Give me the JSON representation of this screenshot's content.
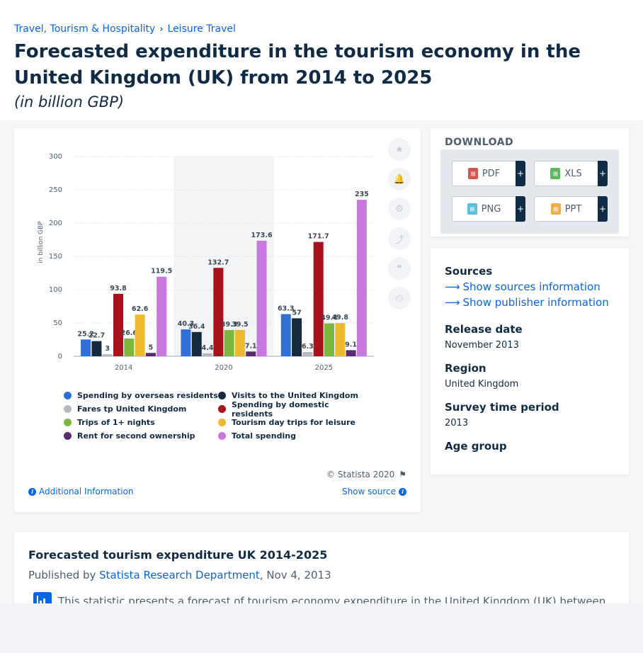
{
  "breadcrumb": {
    "items": [
      "Travel, Tourism & Hospitality",
      "Leisure Travel"
    ],
    "separator": "›"
  },
  "page": {
    "title": "Forecasted expenditure in the tourism economy in the United Kingdom (UK) from 2014 to 2025",
    "subtitle": "(in billion GBP)"
  },
  "chart_data": {
    "type": "bar",
    "categories": [
      "2014",
      "2020",
      "2025"
    ],
    "ylabel": "in billion GBP",
    "ylim": [
      0,
      300
    ],
    "yticks": [
      0,
      50,
      100,
      150,
      200,
      250,
      300
    ],
    "grid": true,
    "highlighted_category": "2020",
    "legend_position": "bottom",
    "series": [
      {
        "name": "Spending by overseas residents",
        "color": "#2f6fd6",
        "values": [
          25.2,
          40.3,
          63.3
        ],
        "labels": [
          "25.2",
          "40.3",
          "63.3"
        ]
      },
      {
        "name": "Visits to the United Kingdom",
        "color": "#15293f",
        "values": [
          22.7,
          36.4,
          57
        ],
        "labels": [
          "22.7",
          "36.4",
          "57"
        ]
      },
      {
        "name": "Fares tp United Kingdom",
        "color": "#b4bac0",
        "values": [
          3,
          4.4,
          6.3
        ],
        "labels": [
          "3",
          "4.4",
          "6.3"
        ]
      },
      {
        "name": "Spending by domestic residents",
        "color": "#a8121c",
        "values": [
          93.8,
          132.7,
          171.7
        ],
        "labels": [
          "93.8",
          "132.7",
          "171.7"
        ]
      },
      {
        "name": "Trips of 1+ nights",
        "color": "#7cb83d",
        "values": [
          26.6,
          39.3,
          49.4
        ],
        "labels": [
          "26.6",
          "39.3",
          "49.4"
        ]
      },
      {
        "name": "Tourism day trips for leisure",
        "color": "#efb92f",
        "values": [
          62.6,
          39.5,
          49.8
        ],
        "labels": [
          "62.6",
          "39.5",
          "49.8"
        ]
      },
      {
        "name": "Rent for second ownership",
        "color": "#5a2a6b",
        "values": [
          5,
          7.1,
          9.1
        ],
        "labels": [
          "5",
          "7.1",
          "9.1"
        ]
      },
      {
        "name": "Total spending",
        "color": "#c777dd",
        "values": [
          119.5,
          173.6,
          235
        ],
        "labels": [
          "119.5",
          "173.6",
          "235"
        ]
      }
    ]
  },
  "chart_footer": {
    "copyright": "© Statista 2020",
    "additional_info": "Additional Information",
    "show_source": "Show source"
  },
  "download": {
    "heading": "DOWNLOAD",
    "buttons": [
      {
        "label": "PDF",
        "icon": "pdf-file-icon",
        "color": "#d9534f"
      },
      {
        "label": "XLS",
        "icon": "xls-file-icon",
        "color": "#5cb85c"
      },
      {
        "label": "PNG",
        "icon": "png-file-icon",
        "color": "#5bc0de"
      },
      {
        "label": "PPT",
        "icon": "ppt-file-icon",
        "color": "#f0ad4e"
      }
    ],
    "plus": "+"
  },
  "info": {
    "sources_label": "Sources",
    "show_sources": "Show sources information",
    "show_publisher": "Show publisher information",
    "release_label": "Release date",
    "release_value": "November 2013",
    "region_label": "Region",
    "region_value": "United Kingdom",
    "survey_label": "Survey time period",
    "survey_value": "2013",
    "age_label": "Age group"
  },
  "description": {
    "title": "Forecasted tourism expenditure UK 2014-2025",
    "published_prefix": "Published by ",
    "publisher": "Statista Research Department",
    "published_date": ", Nov 4, 2013",
    "text": "This statistic presents a forecast of tourism economy expenditure in the United Kingdom (UK) between"
  },
  "tools": [
    "star-icon",
    "bell-icon",
    "gear-icon",
    "share-icon",
    "quote-icon",
    "print-icon"
  ]
}
